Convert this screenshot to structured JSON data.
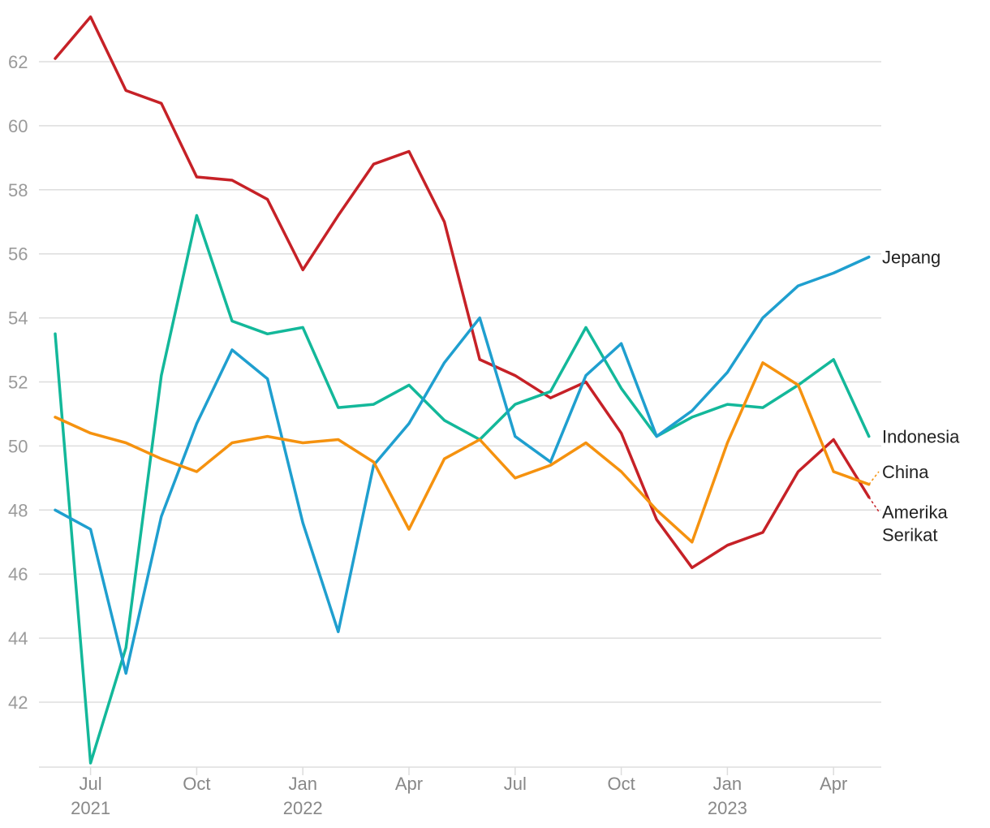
{
  "chart_data": {
    "type": "line",
    "months": [
      "Jun 2021",
      "Jul 2021",
      "Aug 2021",
      "Sep 2021",
      "Oct 2021",
      "Nov 2021",
      "Dec 2021",
      "Jan 2022",
      "Feb 2022",
      "Mar 2022",
      "Apr 2022",
      "May 2022",
      "Jun 2022",
      "Jul 2022",
      "Aug 2022",
      "Sep 2022",
      "Oct 2022",
      "Nov 2022",
      "Dec 2022",
      "Jan 2023",
      "Feb 2023",
      "Mar 2023",
      "Apr 2023",
      "May 2023"
    ],
    "ylim": [
      40,
      63.5
    ],
    "yticks": [
      42,
      44,
      46,
      48,
      50,
      52,
      54,
      56,
      58,
      60,
      62
    ],
    "xticks": [
      {
        "month": "Jul 2021",
        "label": "Jul",
        "year": "2021"
      },
      {
        "month": "Oct 2021",
        "label": "Oct",
        "year": ""
      },
      {
        "month": "Jan 2022",
        "label": "Jan",
        "year": "2022"
      },
      {
        "month": "Apr 2022",
        "label": "Apr",
        "year": ""
      },
      {
        "month": "Jul 2022",
        "label": "Jul",
        "year": ""
      },
      {
        "month": "Oct 2022",
        "label": "Oct",
        "year": ""
      },
      {
        "month": "Jan 2023",
        "label": "Jan",
        "year": "2023"
      },
      {
        "month": "Apr 2023",
        "label": "Apr",
        "year": ""
      }
    ],
    "grid": true,
    "series": [
      {
        "name": "Amerika Serikat",
        "label_lines": [
          "Amerika",
          "Serikat"
        ],
        "color": "#c62127",
        "values": [
          62.1,
          63.4,
          61.1,
          60.7,
          58.4,
          58.3,
          57.7,
          55.5,
          57.2,
          58.8,
          59.2,
          57.0,
          52.7,
          52.2,
          51.5,
          52.0,
          50.4,
          47.7,
          46.2,
          46.9,
          47.3,
          49.2,
          50.2,
          48.4
        ],
        "label_value": 47.95
      },
      {
        "name": "Indonesia",
        "label_lines": [
          "Indonesia"
        ],
        "color": "#13b89a",
        "values": [
          53.5,
          40.1,
          43.7,
          52.2,
          57.2,
          53.9,
          53.5,
          53.7,
          51.2,
          51.3,
          51.9,
          50.8,
          50.2,
          51.3,
          51.7,
          53.7,
          51.8,
          50.3,
          50.9,
          51.3,
          51.2,
          51.9,
          52.7,
          50.3
        ],
        "label_value": 50.3
      },
      {
        "name": "Jepang",
        "label_lines": [
          "Jepang"
        ],
        "color": "#1f9fcf",
        "values": [
          48.0,
          47.4,
          42.9,
          47.8,
          50.7,
          53.0,
          52.1,
          47.6,
          44.2,
          49.4,
          50.7,
          52.6,
          54.0,
          50.3,
          49.5,
          52.2,
          53.2,
          50.3,
          51.1,
          52.3,
          54.0,
          55.0,
          55.4,
          55.9
        ],
        "label_value": 55.9
      },
      {
        "name": "China",
        "label_lines": [
          "China"
        ],
        "color": "#f5920f",
        "values": [
          50.9,
          50.4,
          50.1,
          49.6,
          49.2,
          50.1,
          50.3,
          50.1,
          50.2,
          49.5,
          47.4,
          49.6,
          50.2,
          49.0,
          49.4,
          50.1,
          49.2,
          48.0,
          47.0,
          50.1,
          52.6,
          51.9,
          49.2,
          48.8
        ],
        "label_value": 49.2
      }
    ]
  }
}
